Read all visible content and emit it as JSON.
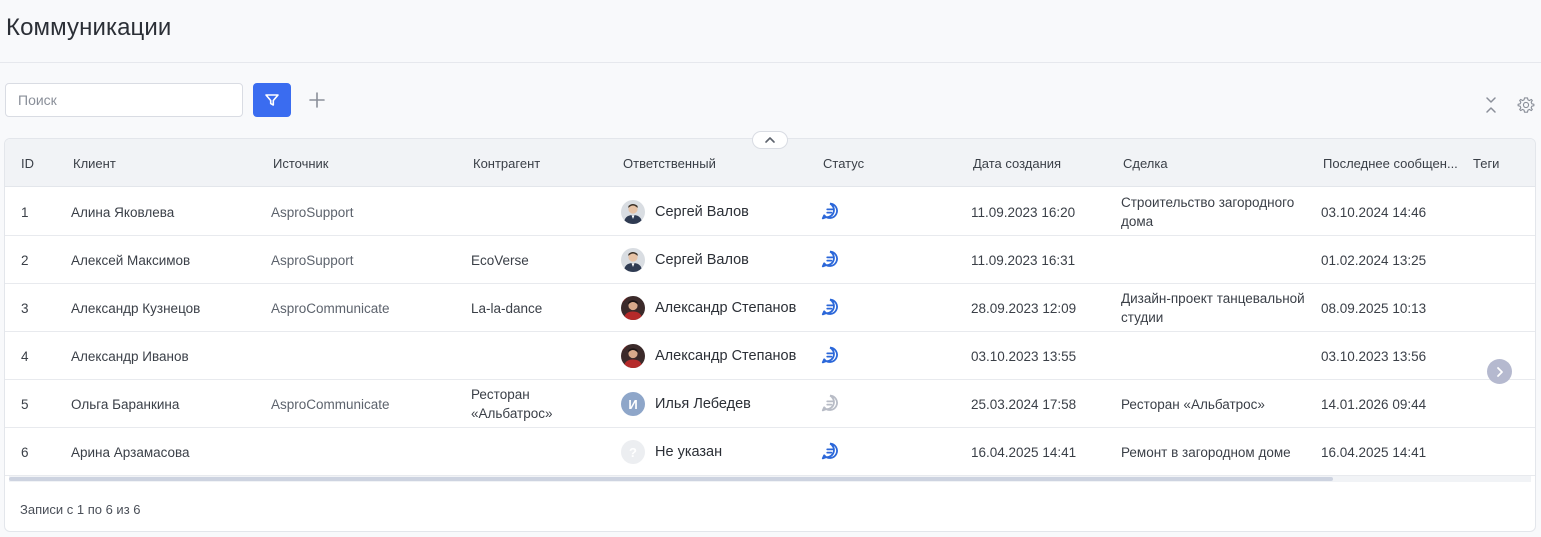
{
  "page": {
    "title": "Коммуникации"
  },
  "toolbar": {
    "search_placeholder": "Поиск",
    "filter_icon": "filter-icon",
    "add_icon": "plus-icon",
    "collapse_icon": "collapse-vertical-icon",
    "settings_icon": "gear-icon",
    "accent_color": "#3a6cf0"
  },
  "table": {
    "columns": [
      "ID",
      "Клиент",
      "Источник",
      "Контрагент",
      "Ответственный",
      "Статус",
      "Дата создания",
      "Сделка",
      "Последнее сообщен...",
      "Теги"
    ],
    "rows": [
      {
        "id": "1",
        "client": "Алина Яковлева",
        "source": "AsproSupport",
        "counterparty": "",
        "responsible": "Сергей Валов",
        "avatar": "photo-sv",
        "status": "active",
        "created": "11.09.2023 16:20",
        "deal": "Строительство загородного дома",
        "last_message": "03.10.2024 14:46",
        "tags": ""
      },
      {
        "id": "2",
        "client": "Алексей Максимов",
        "source": "AsproSupport",
        "counterparty": "EcoVerse",
        "responsible": "Сергей Валов",
        "avatar": "photo-sv",
        "status": "active",
        "created": "11.09.2023 16:31",
        "deal": "",
        "last_message": "01.02.2024 13:25",
        "tags": ""
      },
      {
        "id": "3",
        "client": "Александр Кузнецов",
        "source": "AsproCommunicate",
        "counterparty": "La-la-dance",
        "responsible": "Александр Степанов",
        "avatar": "photo-as",
        "status": "active",
        "created": "28.09.2023 12:09",
        "deal": "Дизайн-проект танцевальной студии",
        "last_message": "08.09.2025 10:13",
        "tags": ""
      },
      {
        "id": "4",
        "client": "Александр Иванов",
        "source": "",
        "counterparty": "",
        "responsible": "Александр Степанов",
        "avatar": "photo-as",
        "status": "active",
        "created": "03.10.2023 13:55",
        "deal": "",
        "last_message": "03.10.2023 13:56",
        "tags": ""
      },
      {
        "id": "5",
        "client": "Ольга Баранкина",
        "source": "AsproCommunicate",
        "counterparty": "Ресторан «Альбатрос»",
        "responsible": "Илья Лебедев",
        "avatar_letter": "И",
        "status": "inactive",
        "created": "25.03.2024 17:58",
        "deal": "Ресторан «Альбатрос»",
        "last_message": "14.01.2026 09:44",
        "tags": ""
      },
      {
        "id": "6",
        "client": "Арина Арзамасова",
        "source": "",
        "counterparty": "",
        "responsible": "Не указан",
        "avatar_letter": "?",
        "status": "active",
        "created": "16.04.2025 14:41",
        "deal": "Ремонт в загородном доме",
        "last_message": "16.04.2025 14:41",
        "tags": ""
      }
    ],
    "status_colors": {
      "active": "#2b67d9",
      "inactive": "#b8bcc6"
    }
  },
  "footer": {
    "records_text": "Записи с 1 по 6 из 6"
  }
}
